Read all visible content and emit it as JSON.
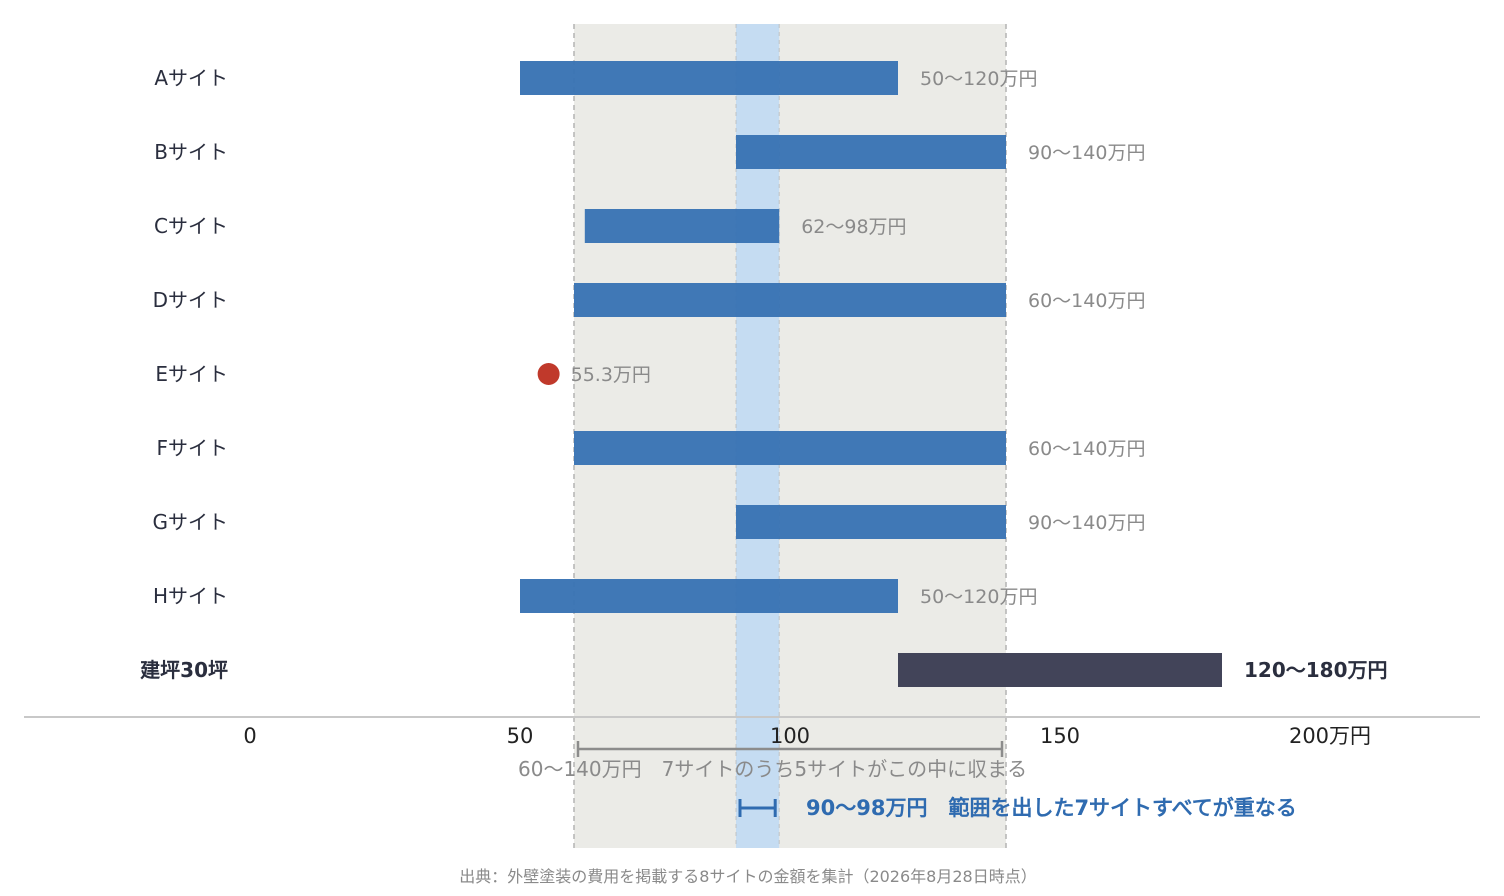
{
  "chart_data": {
    "type": "bar",
    "subtype": "floating-range",
    "x_unit": "万円",
    "xlim": [
      0,
      200
    ],
    "x_ticks": [
      0,
      50,
      100,
      150,
      200
    ],
    "x_tick_labels": [
      "0",
      "50",
      "100",
      "150",
      "200万円"
    ],
    "grid": false,
    "rows": [
      {
        "label": "Aサイト",
        "low": 50,
        "high": 120,
        "value_label": "50〜120万円",
        "kind": "range"
      },
      {
        "label": "Bサイト",
        "low": 90,
        "high": 140,
        "value_label": "90〜140万円",
        "kind": "range"
      },
      {
        "label": "Cサイト",
        "low": 62,
        "high": 98,
        "value_label": "62〜98万円",
        "kind": "range"
      },
      {
        "label": "Dサイト",
        "low": 60,
        "high": 140,
        "value_label": "60〜140万円",
        "kind": "range"
      },
      {
        "label": "Eサイト",
        "value": 55.3,
        "value_label": "55.3万円",
        "kind": "point"
      },
      {
        "label": "Fサイト",
        "low": 60,
        "high": 140,
        "value_label": "60〜140万円",
        "kind": "range"
      },
      {
        "label": "Gサイト",
        "low": 90,
        "high": 140,
        "value_label": "90〜140万円",
        "kind": "range"
      },
      {
        "label": "Hサイト",
        "low": 50,
        "high": 120,
        "value_label": "50〜120万円",
        "kind": "range"
      },
      {
        "label": "建坪30坪",
        "low": 120,
        "high": 180,
        "value_label": "120〜180万円",
        "kind": "reference"
      }
    ],
    "bands": [
      {
        "low": 60,
        "high": 140,
        "label": "60〜140万円　7サイトのうち5サイトがこの中に収まる",
        "color": "#ebebe7"
      },
      {
        "low": 90,
        "high": 98,
        "label": "90〜98万円　範囲を出した7サイトすべてが重なる",
        "color": "#c5dcf2"
      }
    ],
    "source": "出典：外壁塗装の費用を掲載する8サイトの金額を集計（2026年8月28日時点）"
  },
  "colors": {
    "range_bar": "#3a74b4",
    "reference_bar": "#424459",
    "point": "#c0392b",
    "outer_band": "#ebebe7",
    "inner_band": "#c5dcf2",
    "band_edge": "#b4b4b4",
    "outer_bracket": "#8c8c8c",
    "inner_bracket": "#2f6bb0",
    "value_text": "#8a8a8a",
    "axis_text": "#222222",
    "row_label": "#2a2e3e"
  }
}
